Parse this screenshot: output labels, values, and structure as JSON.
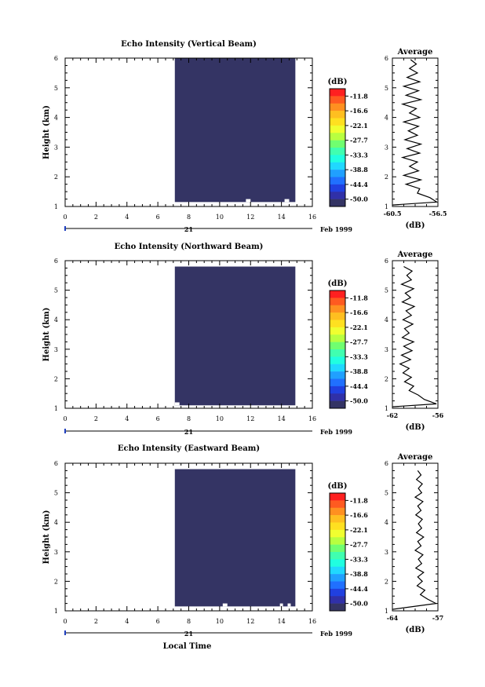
{
  "chart_data": [
    {
      "type": "heatmap",
      "title": "Echo Intensity (Vertical Beam)",
      "ylabel": "Height (km)",
      "xlim": [
        0,
        16
      ],
      "ylim": [
        1,
        6
      ],
      "x_ticks": [
        "0",
        "2",
        "4",
        "6",
        "8",
        "10",
        "12",
        "14",
        "16"
      ],
      "y_ticks": [
        "1",
        "2",
        "3",
        "4",
        "5",
        "6"
      ],
      "date_day": "21",
      "date_label": "Feb 1999",
      "data_extent": {
        "x": [
          7.1,
          14.9
        ],
        "y": [
          1.15,
          6.0
        ]
      },
      "gaps": [
        {
          "x": [
            11.7,
            12.0
          ],
          "y": [
            1.15,
            1.25
          ]
        },
        {
          "x": [
            14.2,
            14.5
          ],
          "y": [
            1.15,
            1.25
          ]
        }
      ],
      "fill_color": "#343464",
      "colorbar": {
        "unit": "(dB)",
        "tick_labels": [
          "-11.8",
          "-16.6",
          "-22.1",
          "-27.7",
          "-33.3",
          "-38.8",
          "-44.4",
          "-50.0"
        ],
        "colors": [
          "#ff2020",
          "#ff5a20",
          "#ff9020",
          "#ffbf20",
          "#ffe020",
          "#f0ff30",
          "#b8ff40",
          "#70ff70",
          "#40ffb0",
          "#20ffe0",
          "#20d8ff",
          "#20a0ff",
          "#2070ff",
          "#2040e0",
          "#3030a8",
          "#343464"
        ]
      },
      "profile": {
        "title": "Average",
        "xlabel": "(dB)",
        "xlim": [
          -60.5,
          -56.5
        ],
        "x_ticks": [
          "-60.5",
          "-56.5"
        ],
        "y_ticks": [
          "1",
          "2",
          "3",
          "4",
          "5",
          "6"
        ],
        "heights": [
          1.05,
          1.15,
          1.3,
          1.45,
          1.6,
          1.75,
          1.9,
          2.05,
          2.2,
          2.35,
          2.5,
          2.65,
          2.8,
          2.95,
          3.1,
          3.25,
          3.4,
          3.55,
          3.7,
          3.85,
          4.0,
          4.15,
          4.3,
          4.45,
          4.6,
          4.75,
          4.9,
          5.05,
          5.2,
          5.35,
          5.5,
          5.65,
          5.8,
          5.95
        ],
        "values": [
          -60.5,
          -56.6,
          -57.2,
          -58.3,
          -58.1,
          -59.3,
          -58.0,
          -59.5,
          -58.2,
          -59.0,
          -58.3,
          -59.6,
          -58.1,
          -59.2,
          -58.0,
          -59.4,
          -58.3,
          -59.1,
          -58.2,
          -59.5,
          -58.1,
          -59.0,
          -58.4,
          -59.6,
          -58.0,
          -59.3,
          -58.2,
          -59.5,
          -58.1,
          -59.2,
          -58.3,
          -59.0,
          -58.4,
          -58.9
        ]
      }
    },
    {
      "type": "heatmap",
      "title": "Echo Intensity (Northward Beam)",
      "ylabel": "Height (km)",
      "xlim": [
        0,
        16
      ],
      "ylim": [
        1,
        6
      ],
      "x_ticks": [
        "0",
        "2",
        "4",
        "6",
        "8",
        "10",
        "12",
        "14",
        "16"
      ],
      "y_ticks": [
        "1",
        "2",
        "3",
        "4",
        "5",
        "6"
      ],
      "date_day": "21",
      "date_label": "Feb 1999",
      "data_extent": {
        "x": [
          7.1,
          14.9
        ],
        "y": [
          1.1,
          5.8
        ]
      },
      "gaps": [
        {
          "x": [
            7.1,
            7.4
          ],
          "y": [
            1.1,
            1.2
          ]
        }
      ],
      "fill_color": "#343464",
      "colorbar": {
        "unit": "(dB)",
        "tick_labels": [
          "-11.8",
          "-16.6",
          "-22.1",
          "-27.7",
          "-33.3",
          "-38.8",
          "-44.4",
          "-50.0"
        ],
        "colors": [
          "#ff2020",
          "#ff5a20",
          "#ff9020",
          "#ffbf20",
          "#ffe020",
          "#f0ff30",
          "#b8ff40",
          "#70ff70",
          "#40ffb0",
          "#20ffe0",
          "#20d8ff",
          "#20a0ff",
          "#2070ff",
          "#2040e0",
          "#3030a8",
          "#343464"
        ]
      },
      "profile": {
        "title": "Average",
        "xlabel": "(dB)",
        "xlim": [
          -62,
          -56
        ],
        "x_ticks": [
          "-62",
          "-56"
        ],
        "y_ticks": [
          "1",
          "2",
          "3",
          "4",
          "5",
          "6"
        ],
        "heights": [
          1.05,
          1.15,
          1.3,
          1.45,
          1.6,
          1.75,
          1.9,
          2.05,
          2.2,
          2.35,
          2.5,
          2.65,
          2.8,
          2.95,
          3.1,
          3.25,
          3.4,
          3.55,
          3.7,
          3.85,
          4.0,
          4.15,
          4.3,
          4.45,
          4.6,
          4.75,
          4.9,
          5.05,
          5.2,
          5.35,
          5.5,
          5.65,
          5.8
        ],
        "values": [
          -62.0,
          -56.2,
          -57.8,
          -58.6,
          -59.8,
          -59.2,
          -60.4,
          -59.5,
          -60.6,
          -59.8,
          -61.0,
          -59.6,
          -60.8,
          -59.4,
          -60.5,
          -59.2,
          -60.7,
          -59.8,
          -60.4,
          -59.3,
          -60.6,
          -59.5,
          -60.2,
          -59.1,
          -60.7,
          -59.6,
          -60.3,
          -59.2,
          -60.8,
          -59.5,
          -60.1,
          -59.4,
          -60.5
        ]
      }
    },
    {
      "type": "heatmap",
      "title": "Echo Intensity (Eastward Beam)",
      "ylabel": "Height (km)",
      "xlabel": "Local Time",
      "xlim": [
        0,
        16
      ],
      "ylim": [
        1,
        6
      ],
      "x_ticks": [
        "0",
        "2",
        "4",
        "6",
        "8",
        "10",
        "12",
        "14",
        "16"
      ],
      "y_ticks": [
        "1",
        "2",
        "3",
        "4",
        "5",
        "6"
      ],
      "date_day": "21",
      "date_label": "Feb 1999",
      "data_extent": {
        "x": [
          7.1,
          14.9
        ],
        "y": [
          1.15,
          5.8
        ]
      },
      "gaps": [
        {
          "x": [
            10.2,
            10.5
          ],
          "y": [
            1.15,
            1.25
          ]
        },
        {
          "x": [
            13.9,
            14.1
          ],
          "y": [
            1.15,
            1.25
          ]
        },
        {
          "x": [
            14.4,
            14.6
          ],
          "y": [
            1.15,
            1.25
          ]
        }
      ],
      "fill_color": "#343464",
      "colorbar": {
        "unit": "(dB)",
        "tick_labels": [
          "-11.8",
          "-16.6",
          "-22.1",
          "-27.7",
          "-33.3",
          "-38.8",
          "-44.4",
          "-50.0"
        ],
        "colors": [
          "#ff2020",
          "#ff5a20",
          "#ff9020",
          "#ffbf20",
          "#ffe020",
          "#f0ff30",
          "#b8ff40",
          "#70ff70",
          "#40ffb0",
          "#20ffe0",
          "#20d8ff",
          "#20a0ff",
          "#2070ff",
          "#2040e0",
          "#3030a8",
          "#343464"
        ]
      },
      "profile": {
        "title": "Average",
        "xlabel": "(dB)",
        "xlim": [
          -64,
          -57
        ],
        "x_ticks": [
          "-64",
          "-57"
        ],
        "y_ticks": [
          "1",
          "2",
          "3",
          "4",
          "5",
          "6"
        ],
        "heights": [
          1.05,
          1.25,
          1.4,
          1.55,
          1.7,
          1.85,
          2.0,
          2.15,
          2.3,
          2.45,
          2.6,
          2.75,
          2.9,
          3.05,
          3.2,
          3.35,
          3.5,
          3.65,
          3.8,
          3.95,
          4.1,
          4.25,
          4.4,
          4.55,
          4.7,
          4.85,
          5.0,
          5.15,
          5.3,
          5.45,
          5.6,
          5.75
        ],
        "values": [
          -64.0,
          -57.3,
          -58.6,
          -59.7,
          -59.0,
          -60.2,
          -59.4,
          -60.1,
          -59.2,
          -60.4,
          -59.5,
          -60.0,
          -59.3,
          -60.5,
          -59.6,
          -60.1,
          -59.2,
          -60.3,
          -59.5,
          -60.0,
          -59.4,
          -60.4,
          -59.6,
          -60.1,
          -59.3,
          -60.5,
          -59.5,
          -60.0,
          -59.4,
          -60.3,
          -59.6,
          -60.1
        ]
      }
    }
  ]
}
